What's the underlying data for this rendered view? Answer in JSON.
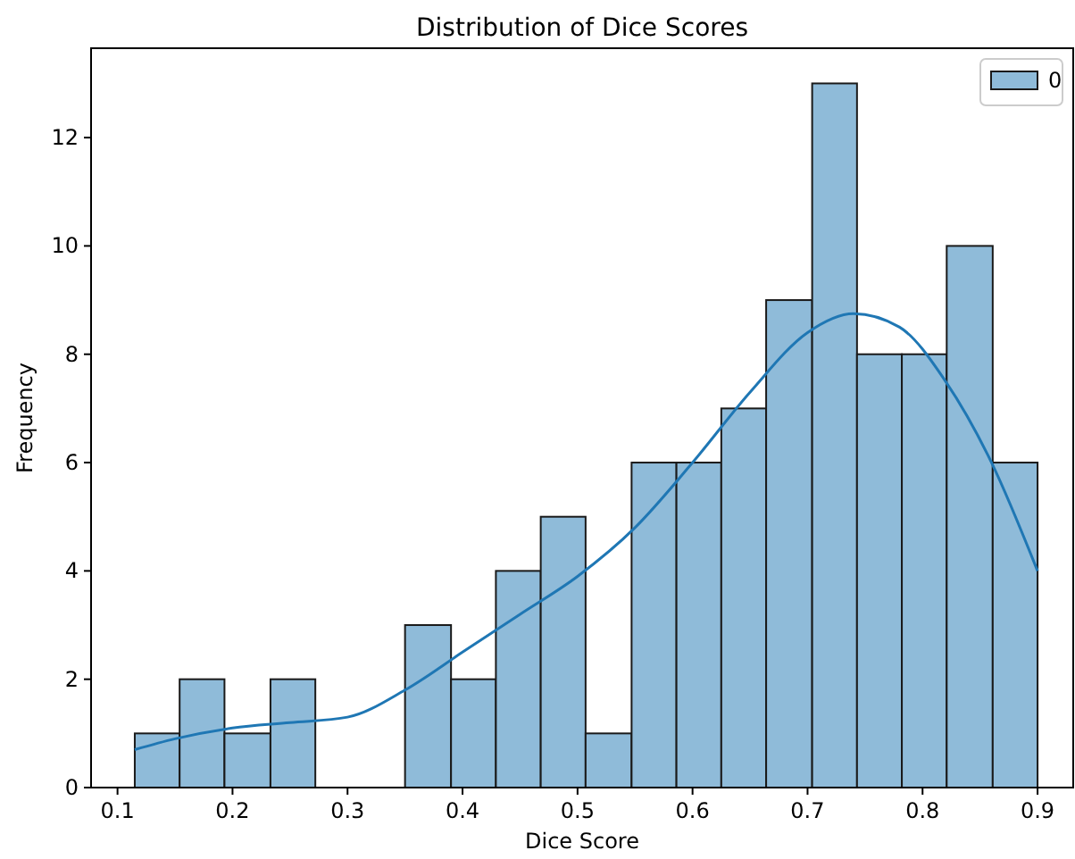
{
  "chart_data": {
    "type": "histogram",
    "title": "Distribution of Dice Scores",
    "xlabel": "Dice Score",
    "ylabel": "Frequency",
    "xlim": [
      0.077,
      0.931
    ],
    "xticks": [
      0.1,
      0.2,
      0.3,
      0.4,
      0.5,
      0.6,
      0.7,
      0.8,
      0.9
    ],
    "ylim": [
      0,
      13.65
    ],
    "yticks": [
      0,
      2,
      4,
      6,
      8,
      10,
      12
    ],
    "grid": false,
    "legend": "top right",
    "series": [
      {
        "name": "0",
        "color": "#8fbbd9",
        "bins": [
          0.115,
          0.154,
          0.193,
          0.233,
          0.272,
          0.35,
          0.39,
          0.429,
          0.468,
          0.507,
          0.547,
          0.586,
          0.625,
          0.664,
          0.704,
          0.743,
          0.782,
          0.821,
          0.861,
          0.9
        ],
        "values": [
          1,
          2,
          1,
          2,
          0,
          3,
          2,
          4,
          5,
          1,
          6,
          6,
          7,
          9,
          13,
          8,
          8,
          10,
          6
        ]
      },
      {
        "type": "line",
        "color": "#1f77b4",
        "x": [
          0.115,
          0.15,
          0.2,
          0.25,
          0.3,
          0.35,
          0.4,
          0.45,
          0.5,
          0.55,
          0.6,
          0.65,
          0.7,
          0.74,
          0.78,
          0.82,
          0.86,
          0.9
        ],
        "values": [
          0.7,
          0.9,
          1.1,
          1.2,
          1.3,
          1.8,
          2.5,
          3.2,
          3.9,
          4.8,
          6.0,
          7.3,
          8.4,
          8.75,
          8.5,
          7.5,
          6.0,
          4.0
        ]
      }
    ]
  }
}
